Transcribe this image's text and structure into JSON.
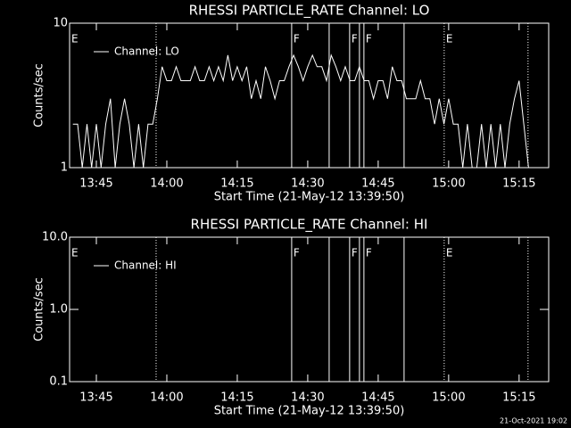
{
  "chart_data": [
    {
      "type": "line",
      "title": "RHESSI PARTICLE_RATE Channel: LO",
      "x_label": "Start Time (21-May-12 13:39:50)",
      "y_label": "Counts/sec",
      "log_y": true,
      "legend": "top-left",
      "xlim": [
        39.3,
        141.3
      ],
      "xticks": [
        {
          "value": 45,
          "label": "13:45"
        },
        {
          "value": 60,
          "label": "14:00"
        },
        {
          "value": 75,
          "label": "14:15"
        },
        {
          "value": 90,
          "label": "14:30"
        },
        {
          "value": 105,
          "label": "14:45"
        },
        {
          "value": 120,
          "label": "15:00"
        },
        {
          "value": 135,
          "label": "15:15"
        }
      ],
      "ylim": [
        1,
        10
      ],
      "yticks": [
        1,
        10
      ],
      "markers": [
        {
          "x": 57.72,
          "style": "dotted"
        },
        {
          "x": 86.58,
          "style": "solid"
        },
        {
          "x": 94.56,
          "style": "solid"
        },
        {
          "x": 98.92,
          "style": "solid"
        },
        {
          "x": 101.01,
          "style": "solid"
        },
        {
          "x": 101.96,
          "style": "solid"
        },
        {
          "x": 110.51,
          "style": "solid"
        },
        {
          "x": 119.05,
          "style": "dotted"
        },
        {
          "x": 136.9,
          "style": "dotted"
        }
      ],
      "annotations": [
        {
          "text": "E",
          "x": 39.3
        },
        {
          "text": "F",
          "x": 86.58
        },
        {
          "text": "F",
          "x": 98.92
        },
        {
          "text": "F",
          "x": 101.96
        },
        {
          "text": "E",
          "x": 119.05
        }
      ],
      "x": [
        40,
        41,
        42,
        43,
        44,
        45,
        46,
        47,
        48,
        49,
        50,
        51,
        52,
        53,
        54,
        55,
        56,
        57,
        58,
        59,
        60,
        61,
        62,
        63,
        64,
        65,
        66,
        67,
        68,
        69,
        70,
        71,
        72,
        73,
        74,
        75,
        76,
        77,
        78,
        79,
        80,
        81,
        82,
        83,
        84,
        85,
        86,
        87,
        88,
        89,
        90,
        91,
        92,
        93,
        94,
        95,
        96,
        97,
        98,
        99,
        100,
        101,
        102,
        103,
        104,
        105,
        106,
        107,
        108,
        109,
        110,
        111,
        112,
        113,
        114,
        115,
        116,
        117,
        118,
        119,
        120,
        121,
        122,
        123,
        124,
        125,
        126,
        127,
        128,
        129,
        130,
        131,
        132,
        133,
        134,
        135,
        136,
        137
      ],
      "series": [
        {
          "name": "Channel: LO",
          "color": "#ffffff",
          "values": [
            2,
            2,
            1,
            2,
            1,
            2,
            1,
            2,
            3,
            1,
            2,
            3,
            2,
            1,
            2,
            1,
            2,
            2,
            3,
            5,
            4,
            4,
            5,
            4,
            4,
            4,
            5,
            4,
            4,
            5,
            4,
            5,
            4,
            6,
            4,
            5,
            4,
            5,
            3,
            4,
            3,
            5,
            4,
            3,
            4,
            4,
            5,
            6,
            5,
            4,
            5,
            6,
            5,
            5,
            4,
            6,
            5,
            4,
            5,
            4,
            4,
            5,
            4,
            4,
            3,
            4,
            4,
            3,
            5,
            4,
            4,
            3,
            3,
            3,
            4,
            3,
            3,
            2,
            3,
            2,
            3,
            2,
            2,
            1,
            2,
            1,
            1,
            2,
            1,
            2,
            1,
            2,
            1,
            2,
            3,
            4,
            2,
            1
          ]
        }
      ]
    },
    {
      "type": "line",
      "title": "RHESSI PARTICLE_RATE Channel: HI",
      "x_label": "Start Time (21-May-12 13:39:50)",
      "y_label": "Counts/sec",
      "log_y": true,
      "legend": "top-left",
      "xlim": [
        39.3,
        141.3
      ],
      "xticks": [
        {
          "value": 45,
          "label": "13:45"
        },
        {
          "value": 60,
          "label": "14:00"
        },
        {
          "value": 75,
          "label": "14:15"
        },
        {
          "value": 90,
          "label": "14:30"
        },
        {
          "value": 105,
          "label": "14:45"
        },
        {
          "value": 120,
          "label": "15:00"
        },
        {
          "value": 135,
          "label": "15:15"
        }
      ],
      "ylim": [
        0.1,
        10
      ],
      "yticks": [
        0.1,
        {
          "value": 1,
          "label": "1.0"
        },
        {
          "value": 10,
          "label": "10.0"
        }
      ],
      "markers": [
        {
          "x": 57.72,
          "style": "dotted"
        },
        {
          "x": 86.58,
          "style": "solid"
        },
        {
          "x": 94.56,
          "style": "solid"
        },
        {
          "x": 98.92,
          "style": "solid"
        },
        {
          "x": 101.01,
          "style": "solid"
        },
        {
          "x": 101.96,
          "style": "solid"
        },
        {
          "x": 110.51,
          "style": "solid"
        },
        {
          "x": 119.05,
          "style": "dotted"
        },
        {
          "x": 136.9,
          "style": "dotted"
        }
      ],
      "annotations": [
        {
          "text": "E",
          "x": 39.3
        },
        {
          "text": "F",
          "x": 86.58
        },
        {
          "text": "F",
          "x": 98.92
        },
        {
          "text": "F",
          "x": 101.96
        },
        {
          "text": "E",
          "x": 119.05
        }
      ],
      "x": [],
      "series": [
        {
          "name": "Channel: HI",
          "color": "#ffffff",
          "values": []
        }
      ]
    }
  ],
  "footer": "21-Oct-2021 19:02"
}
